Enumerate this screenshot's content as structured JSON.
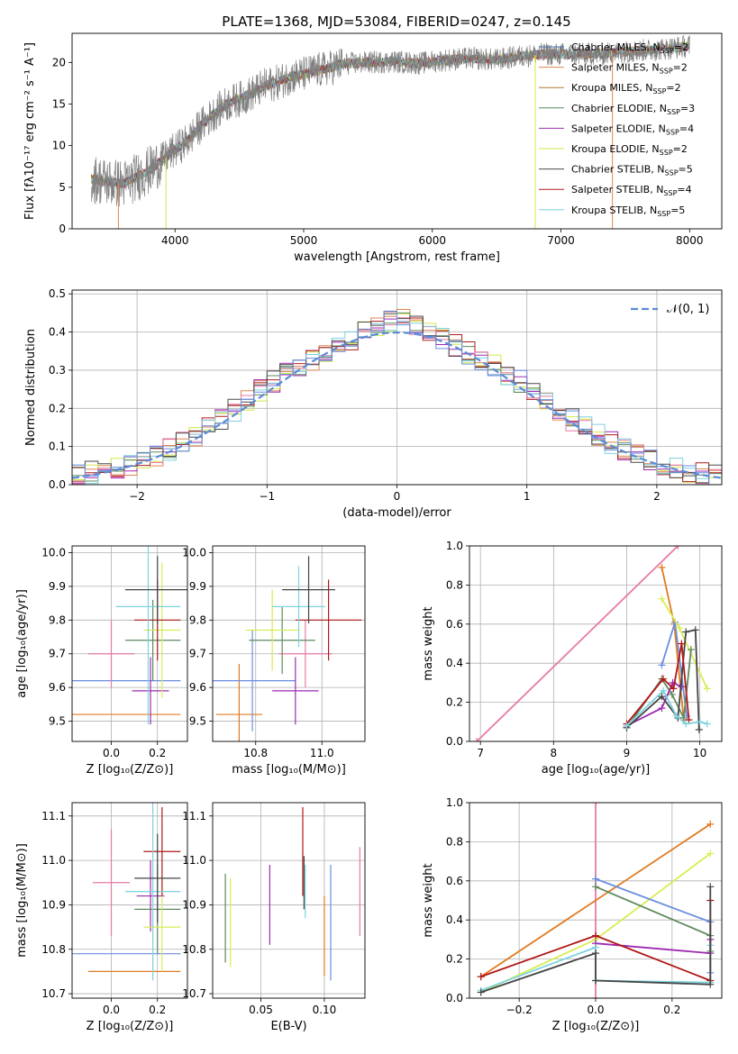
{
  "figure_title": "PLATE=1368, MJD=53084, FIBERID=0247, z=0.145",
  "colors": {
    "MILES_Chabrier": "#4c72b0",
    "MILES_Salpeter": "#dd8452",
    "MILES_Kroupa": "#ad7e2c",
    "ELODIE_Chabrier": "#5a8a5a",
    "ELODIE_Salpeter": "#a02cb5",
    "ELODIE_Kroupa": "#d4e84a",
    "STELIB_Chabrier": "#4a4a4a",
    "STELIB_Salpeter": "#b01c1c",
    "STELIB_Kroupa": "#7fd1e0",
    "data": "#808080",
    "gaussian": "#5b8bd6",
    "pink": "#e67aa8",
    "orange": "#e07b20",
    "blue": "#6a8ee0",
    "green": "#5e8a5e",
    "purple": "#9d2ab0",
    "yellow": "#d8ec54",
    "dark": "#454545",
    "red": "#b01818",
    "cyan": "#7dd3de"
  },
  "chart_data": [
    {
      "id": "spectrum",
      "type": "line",
      "xlabel": "wavelength [Angstrom, rest frame]",
      "ylabel": "Flux [fλ10⁻¹⁷ erg cm⁻² s⁻¹ A⁻¹]",
      "xlim": [
        3200,
        8250
      ],
      "ylim": [
        0,
        23.5
      ],
      "xticks": [
        4000,
        5000,
        6000,
        7000,
        8000
      ],
      "yticks": [
        0,
        5,
        10,
        15,
        20
      ],
      "spectrum_shape": {
        "x": [
          3350,
          3500,
          3600,
          3700,
          3800,
          3900,
          4000,
          4100,
          4200,
          4300,
          4400,
          4500,
          4600,
          4700,
          4800,
          4900,
          5000,
          5100,
          5200,
          5300,
          5500,
          5700,
          5900,
          6100,
          6300,
          6500,
          6700,
          6900,
          7100,
          7300,
          7500,
          7700,
          7900,
          8000
        ],
        "y": [
          6.0,
          5.6,
          5.4,
          6.2,
          7.0,
          8.2,
          9.5,
          10.6,
          12.4,
          13.8,
          15.0,
          15.6,
          16.3,
          17.2,
          17.6,
          18.3,
          18.6,
          19.0,
          19.3,
          19.8,
          20.0,
          20.1,
          19.9,
          20.3,
          20.5,
          20.3,
          20.8,
          21.0,
          21.0,
          21.0,
          21.3,
          21.5,
          21.8,
          22.0
        ]
      },
      "legend": [
        {
          "label": "Chabrier MILES, N",
          "sub": "SSP",
          "suffix": "=2",
          "color": "#4c72b0"
        },
        {
          "label": "Salpeter MILES, N",
          "sub": "SSP",
          "suffix": "=2",
          "color": "#dd8452"
        },
        {
          "label": "Kroupa MILES, N",
          "sub": "SSP",
          "suffix": "=2",
          "color": "#ad7e2c"
        },
        {
          "label": "Chabrier ELODIE, N",
          "sub": "SSP",
          "suffix": "=3",
          "color": "#5a8a5a"
        },
        {
          "label": "Salpeter ELODIE, N",
          "sub": "SSP",
          "suffix": "=4",
          "color": "#a02cb5"
        },
        {
          "label": "Kroupa ELODIE, N",
          "sub": "SSP",
          "suffix": "=2",
          "color": "#d4e84a"
        },
        {
          "label": "Chabrier STELIB, N",
          "sub": "SSP",
          "suffix": "=5",
          "color": "#4a4a4a"
        },
        {
          "label": "Salpeter STELIB, N",
          "sub": "SSP",
          "suffix": "=4",
          "color": "#b01c1c"
        },
        {
          "label": "Kroupa STELIB, N",
          "sub": "SSP",
          "suffix": "=5",
          "color": "#7fd1e0"
        }
      ]
    },
    {
      "id": "residuals",
      "type": "histogram",
      "xlabel": "(data-model)/error",
      "ylabel": "Normed distribution",
      "xlim": [
        -2.5,
        2.5
      ],
      "ylim": [
        0,
        0.51
      ],
      "xticks": [
        -2,
        -1,
        0,
        1,
        2
      ],
      "yticks": [
        0.0,
        0.1,
        0.2,
        0.3,
        0.4,
        0.5
      ],
      "grid": true,
      "legend": "𝒩(0, 1)",
      "bins": [
        -2.5,
        -2.4,
        -2.3,
        -2.2,
        -2.1,
        -2.0,
        -1.9,
        -1.8,
        -1.7,
        -1.6,
        -1.5,
        -1.4,
        -1.3,
        -1.2,
        -1.1,
        -1.0,
        -0.9,
        -0.8,
        -0.7,
        -0.6,
        -0.5,
        -0.4,
        -0.3,
        -0.2,
        -0.1,
        0.0,
        0.1,
        0.2,
        0.3,
        0.4,
        0.5,
        0.6,
        0.7,
        0.8,
        0.9,
        1.0,
        1.1,
        1.2,
        1.3,
        1.4,
        1.5,
        1.6,
        1.7,
        1.8,
        1.9,
        2.0,
        2.1,
        2.2,
        2.3,
        2.4,
        2.5
      ],
      "density": [
        0.025,
        0.032,
        0.038,
        0.045,
        0.052,
        0.062,
        0.075,
        0.092,
        0.11,
        0.13,
        0.152,
        0.172,
        0.195,
        0.22,
        0.248,
        0.27,
        0.29,
        0.31,
        0.33,
        0.345,
        0.36,
        0.38,
        0.405,
        0.42,
        0.43,
        0.43,
        0.42,
        0.405,
        0.385,
        0.365,
        0.345,
        0.33,
        0.31,
        0.29,
        0.27,
        0.245,
        0.22,
        0.195,
        0.17,
        0.15,
        0.13,
        0.11,
        0.092,
        0.075,
        0.062,
        0.052,
        0.044,
        0.036,
        0.03,
        0.024
      ]
    },
    {
      "id": "age_vs_Z",
      "type": "errorbar",
      "xlabel": "Z [log₁₀(Z/Z⊙)]",
      "ylabel": "age  [log₁₀(age/yr)]",
      "xlim": [
        -0.17,
        0.33
      ],
      "ylim": [
        9.44,
        10.02
      ],
      "xticks": [
        0.0,
        0.2
      ],
      "yticks": [
        9.5,
        9.6,
        9.7,
        9.8,
        9.9,
        10.0
      ],
      "points": [
        {
          "x": 0.0,
          "y": 9.52,
          "xerr": 0.3,
          "yerr": 0.0,
          "color": "#e07b20"
        },
        {
          "x": 0.0,
          "y": 9.62,
          "xerr": 0.3,
          "yerr": 0.0,
          "color": "#6a8ee0"
        },
        {
          "x": 0.0,
          "y": 9.7,
          "xerr": 0.1,
          "yerr": 0.1,
          "color": "#e67aa8"
        },
        {
          "x": 0.17,
          "y": 9.59,
          "xerr": 0.08,
          "yerr": 0.1,
          "color": "#9d2ab0"
        },
        {
          "x": 0.18,
          "y": 9.74,
          "xerr": 0.12,
          "yerr": 0.12,
          "color": "#5e8a5e"
        },
        {
          "x": 0.22,
          "y": 9.77,
          "xerr": 0.08,
          "yerr": 0.2,
          "color": "#d8ec54"
        },
        {
          "x": 0.2,
          "y": 9.8,
          "xerr": 0.1,
          "yerr": 0.12,
          "color": "#b01818"
        },
        {
          "x": 0.16,
          "y": 9.84,
          "xerr": 0.14,
          "yerr": 0.35,
          "color": "#7dd3de"
        },
        {
          "x": 0.2,
          "y": 9.89,
          "xerr": 0.14,
          "yerr": 0.1,
          "color": "#454545"
        }
      ]
    },
    {
      "id": "age_vs_mass",
      "type": "errorbar",
      "xlabel": "mass [log₁₀(M/M⊙)]",
      "ylabel": "",
      "xlim": [
        10.67,
        11.13
      ],
      "ylim": [
        9.44,
        10.02
      ],
      "xticks": [
        10.8,
        11.0
      ],
      "yticks": [
        9.5,
        9.6,
        9.7,
        9.8,
        9.9,
        10.0
      ],
      "points": [
        {
          "x": 10.75,
          "y": 9.52,
          "xerr": 0.07,
          "yerr": 0.15,
          "color": "#e07b20"
        },
        {
          "x": 10.79,
          "y": 9.62,
          "xerr": 0.13,
          "yerr": 0.15,
          "color": "#6a8ee0"
        },
        {
          "x": 10.95,
          "y": 9.7,
          "xerr": 0.08,
          "yerr": 0.1,
          "color": "#e67aa8"
        },
        {
          "x": 10.92,
          "y": 9.59,
          "xerr": 0.07,
          "yerr": 0.1,
          "color": "#9d2ab0"
        },
        {
          "x": 10.88,
          "y": 9.74,
          "xerr": 0.1,
          "yerr": 0.1,
          "color": "#5e8a5e"
        },
        {
          "x": 10.85,
          "y": 9.77,
          "xerr": 0.08,
          "yerr": 0.12,
          "color": "#d8ec54"
        },
        {
          "x": 11.02,
          "y": 9.8,
          "xerr": 0.1,
          "yerr": 0.12,
          "color": "#b01818"
        },
        {
          "x": 10.93,
          "y": 9.84,
          "xerr": 0.08,
          "yerr": 0.12,
          "color": "#7dd3de"
        },
        {
          "x": 10.96,
          "y": 9.89,
          "xerr": 0.08,
          "yerr": 0.1,
          "color": "#454545"
        }
      ]
    },
    {
      "id": "mass_weight_vs_age",
      "type": "line",
      "xlabel": "age  [log₁₀(age/yr)]",
      "ylabel": "mass weight",
      "xlim": [
        6.85,
        10.3
      ],
      "ylim": [
        0,
        1.0
      ],
      "xticks": [
        7,
        8,
        9,
        10
      ],
      "yticks": [
        0.0,
        0.2,
        0.4,
        0.6,
        0.8,
        1.0
      ],
      "series": [
        {
          "color": "#e67aa8",
          "x": [
            6.95,
            9.7
          ],
          "y": [
            0.0,
            1.0
          ]
        },
        {
          "color": "#e07b20",
          "x": [
            9.48,
            9.65,
            9.78
          ],
          "y": [
            0.89,
            0.6,
            0.11
          ]
        },
        {
          "color": "#6a8ee0",
          "x": [
            9.48,
            9.66,
            9.82
          ],
          "y": [
            0.39,
            0.61,
            0.13
          ]
        },
        {
          "color": "#d8ec54",
          "x": [
            9.48,
            9.72,
            10.1
          ],
          "y": [
            0.73,
            0.58,
            0.27
          ]
        },
        {
          "color": "#5e8a5e",
          "x": [
            9.0,
            9.48,
            9.62,
            9.78,
            9.88
          ],
          "y": [
            0.07,
            0.32,
            0.24,
            0.12,
            0.47
          ]
        },
        {
          "color": "#9d2ab0",
          "x": [
            9.0,
            9.48,
            9.63,
            9.75
          ],
          "y": [
            0.08,
            0.17,
            0.3,
            0.28
          ]
        },
        {
          "color": "#454545",
          "x": [
            9.0,
            9.48,
            9.7,
            9.81,
            9.94,
            9.99
          ],
          "y": [
            0.07,
            0.23,
            0.12,
            0.56,
            0.57,
            0.06
          ]
        },
        {
          "color": "#b01818",
          "x": [
            9.0,
            9.5,
            9.64,
            9.75,
            9.85
          ],
          "y": [
            0.09,
            0.32,
            0.27,
            0.5,
            0.11
          ]
        },
        {
          "color": "#7dd3de",
          "x": [
            9.0,
            9.5,
            9.68,
            9.81,
            10.0,
            10.1
          ],
          "y": [
            0.08,
            0.26,
            0.13,
            0.09,
            0.1,
            0.09
          ]
        }
      ]
    },
    {
      "id": "mass_vs_Z",
      "type": "errorbar",
      "xlabel": "Z [log₁₀(Z/Z⊙)]",
      "ylabel": "mass [log₁₀(M/M⊙)]",
      "xlim": [
        -0.17,
        0.33
      ],
      "ylim": [
        10.69,
        11.13
      ],
      "xticks": [
        0.0,
        0.2
      ],
      "yticks": [
        10.7,
        10.8,
        10.9,
        11.0,
        11.1
      ],
      "points": [
        {
          "x": 0.1,
          "y": 10.75,
          "xerr": 0.2,
          "yerr": 0.0,
          "color": "#e07b20"
        },
        {
          "x": 0.0,
          "y": 10.79,
          "xerr": 0.3,
          "yerr": 0.0,
          "color": "#6a8ee0"
        },
        {
          "x": 0.0,
          "y": 10.95,
          "xerr": 0.08,
          "yerr": 0.12,
          "color": "#e67aa8"
        },
        {
          "x": 0.17,
          "y": 10.92,
          "xerr": 0.06,
          "yerr": 0.08,
          "color": "#9d2ab0"
        },
        {
          "x": 0.2,
          "y": 10.89,
          "xerr": 0.1,
          "yerr": 0.1,
          "color": "#5e8a5e"
        },
        {
          "x": 0.22,
          "y": 10.85,
          "xerr": 0.08,
          "yerr": 0.1,
          "color": "#d8ec54"
        },
        {
          "x": 0.22,
          "y": 11.02,
          "xerr": 0.08,
          "yerr": 0.1,
          "color": "#b01818"
        },
        {
          "x": 0.18,
          "y": 10.93,
          "xerr": 0.12,
          "yerr": 0.2,
          "color": "#7dd3de"
        },
        {
          "x": 0.2,
          "y": 10.96,
          "xerr": 0.1,
          "yerr": 0.1,
          "color": "#454545"
        }
      ]
    },
    {
      "id": "mass_vs_EBV",
      "type": "errorbar",
      "xlabel": "E(B-V)",
      "ylabel": "",
      "xlim": [
        0.012,
        0.132
      ],
      "ylim": [
        10.69,
        11.13
      ],
      "xticks": [
        0.05,
        0.1
      ],
      "yticks": [
        10.7,
        10.8,
        10.9,
        11.0,
        11.1
      ],
      "points": [
        {
          "x": 0.1,
          "y": 10.83,
          "xerr": 0.0,
          "yerr": 0.09,
          "color": "#e07b20"
        },
        {
          "x": 0.105,
          "y": 10.86,
          "xerr": 0.0,
          "yerr": 0.13,
          "color": "#6a8ee0"
        },
        {
          "x": 0.128,
          "y": 10.93,
          "xerr": 0.0,
          "yerr": 0.1,
          "color": "#e67aa8"
        },
        {
          "x": 0.057,
          "y": 10.9,
          "xerr": 0.0,
          "yerr": 0.09,
          "color": "#9d2ab0"
        },
        {
          "x": 0.022,
          "y": 10.87,
          "xerr": 0.0,
          "yerr": 0.1,
          "color": "#5e8a5e"
        },
        {
          "x": 0.026,
          "y": 10.86,
          "xerr": 0.0,
          "yerr": 0.1,
          "color": "#d8ec54"
        },
        {
          "x": 0.083,
          "y": 11.02,
          "xerr": 0.0,
          "yerr": 0.1,
          "color": "#b01818"
        },
        {
          "x": 0.085,
          "y": 10.93,
          "xerr": 0.0,
          "yerr": 0.06,
          "color": "#7dd3de"
        },
        {
          "x": 0.084,
          "y": 10.95,
          "xerr": 0.0,
          "yerr": 0.06,
          "color": "#454545"
        }
      ]
    },
    {
      "id": "mass_weight_vs_Z",
      "type": "line",
      "xlabel": "Z [log₁₀(Z/Z⊙)]",
      "ylabel": "mass weight",
      "xlim": [
        -0.33,
        0.33
      ],
      "ylim": [
        0,
        1.0
      ],
      "xticks": [
        -0.2,
        0.0,
        0.2
      ],
      "yticks": [
        0.0,
        0.2,
        0.4,
        0.6,
        0.8,
        1.0
      ],
      "series": [
        {
          "color": "#e67aa8",
          "x": [
            0.0,
            0.0
          ],
          "y": [
            0.0,
            1.0
          ]
        },
        {
          "color": "#e07b20",
          "x": [
            -0.3,
            0.3
          ],
          "y": [
            0.11,
            0.89
          ]
        },
        {
          "color": "#d8ec54",
          "x": [
            -0.3,
            0.0,
            0.3
          ],
          "y": [
            0.03,
            0.3,
            0.74
          ]
        },
        {
          "color": "#6a8ee0",
          "x": [
            0.0,
            0.3,
            0.3
          ],
          "y": [
            0.61,
            0.39,
            0.13
          ]
        },
        {
          "color": "#5e8a5e",
          "x": [
            0.0,
            0.3,
            0.3
          ],
          "y": [
            0.57,
            0.32,
            0.24
          ]
        },
        {
          "color": "#9d2ab0",
          "x": [
            0.0,
            0.3,
            0.3
          ],
          "y": [
            0.28,
            0.23,
            0.3
          ]
        },
        {
          "color": "#b01818",
          "x": [
            -0.3,
            0.0,
            0.3,
            0.3
          ],
          "y": [
            0.11,
            0.32,
            0.09,
            0.5
          ]
        },
        {
          "color": "#7dd3de",
          "x": [
            -0.3,
            0.0,
            0.0,
            0.3,
            0.3
          ],
          "y": [
            0.04,
            0.26,
            0.09,
            0.08,
            0.27
          ]
        },
        {
          "color": "#454545",
          "x": [
            -0.3,
            0.0,
            0.0,
            0.3,
            0.3
          ],
          "y": [
            0.03,
            0.23,
            0.09,
            0.07,
            0.57
          ]
        }
      ]
    }
  ]
}
